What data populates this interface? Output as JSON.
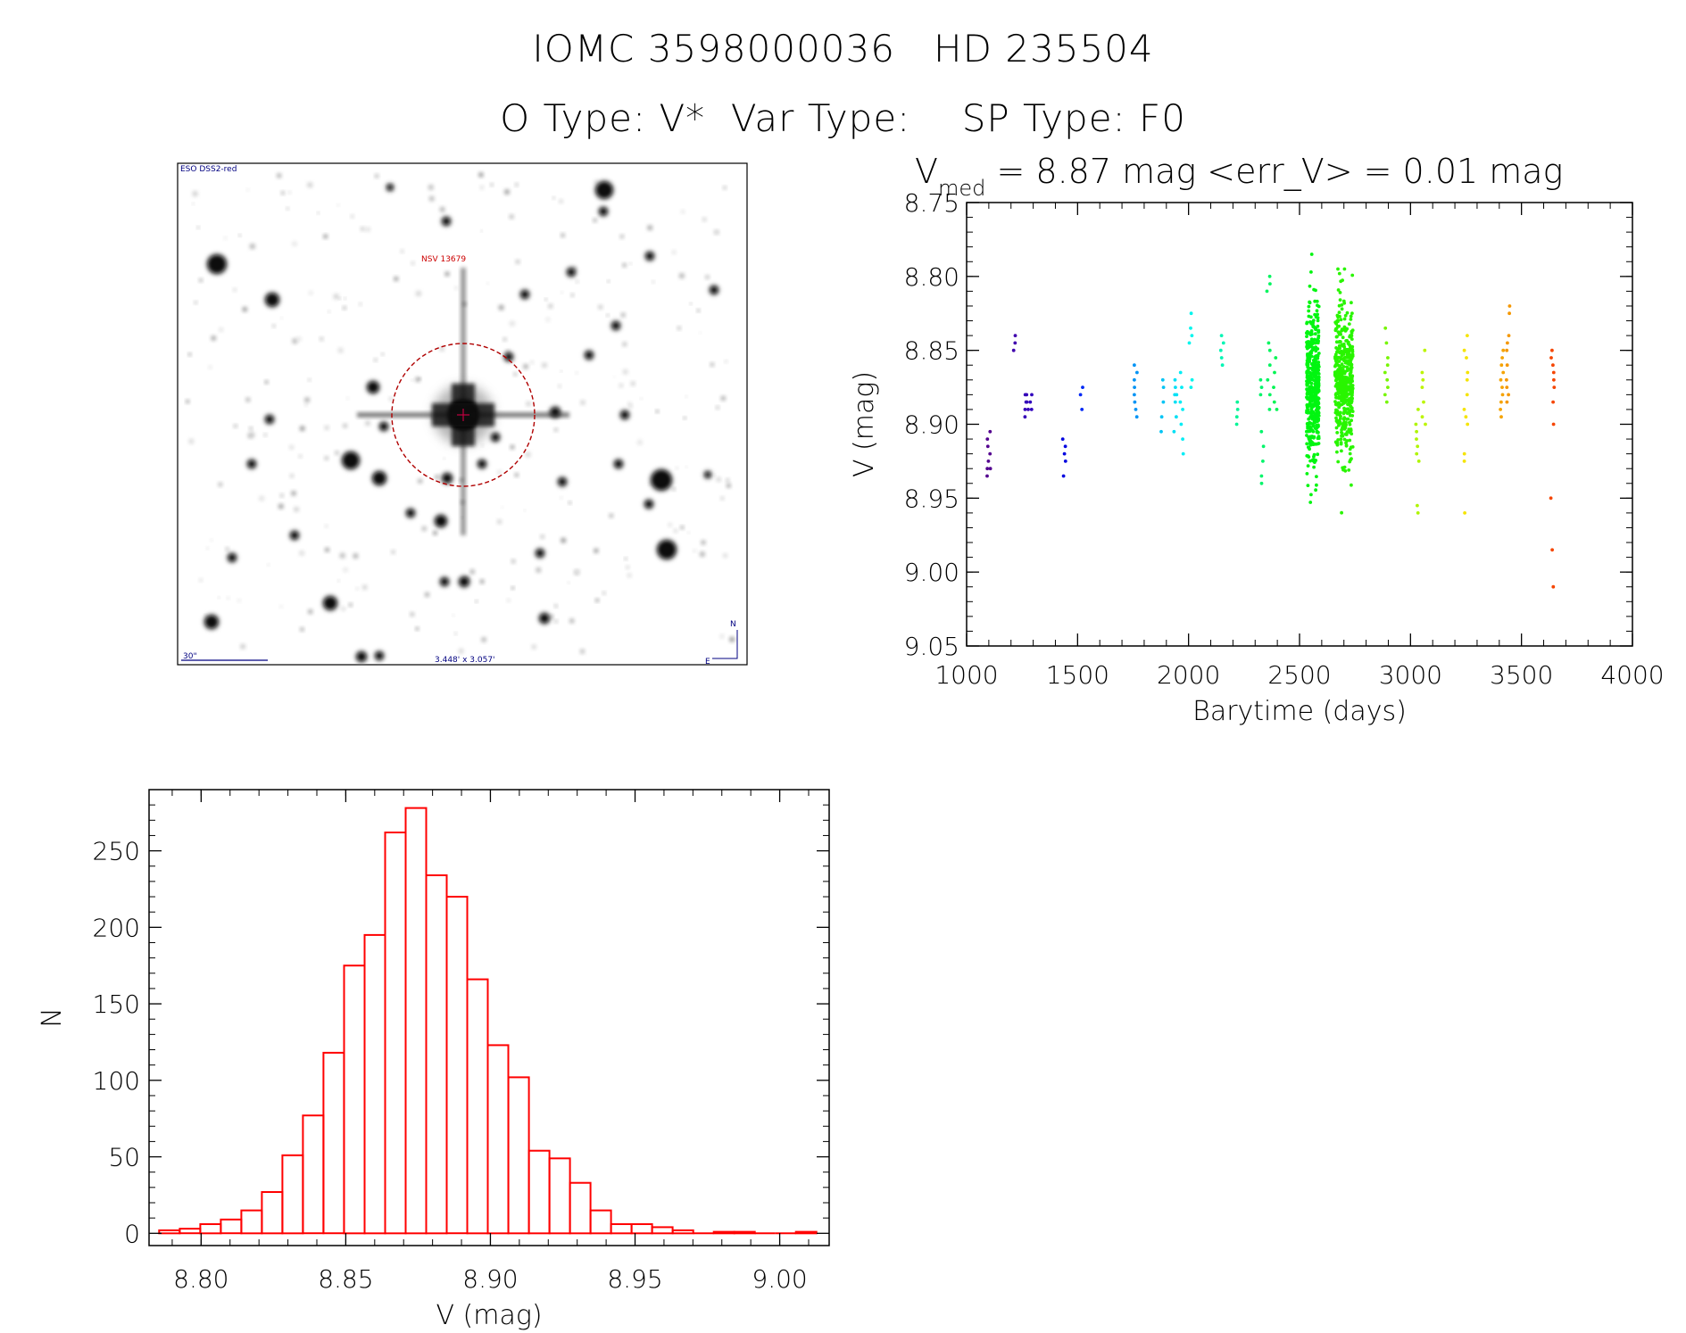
{
  "header": {
    "title_line1": "IOMC 3598000036   HD 235504",
    "title_line2": "O Type: V*  Var Type:    SP Type: F0"
  },
  "finder_image": {
    "survey_label": "ESO DSS2-red",
    "object_label": "NSV 13679",
    "scale_label": "30\"",
    "size_label": "3.448' x 3.057'",
    "north_label": "N",
    "east_label": "E",
    "label_color": "#000080",
    "object_color": "#cc0000"
  },
  "chart_data": [
    {
      "type": "scatter",
      "title_main": "V",
      "title_sub": "med",
      "title_rest": " = 8.87 mag <err_V> = 0.01 mag",
      "xlabel": "Barytime (days)",
      "ylabel": "V (mag)",
      "xlim": [
        1000,
        4000
      ],
      "ylim": [
        9.05,
        8.75
      ],
      "y_inverted": true,
      "xticks": [
        "1000",
        "1500",
        "2000",
        "2500",
        "3000",
        "3500",
        "4000"
      ],
      "yticks": [
        "8.75",
        "8.80",
        "8.85",
        "8.90",
        "8.95",
        "9.00",
        "9.05"
      ],
      "point_color_scale": "rainbow by time (purple to red)",
      "clusters": [
        {
          "t": 1100,
          "y": [
            8.91,
            8.93,
            8.915,
            8.92,
            8.925,
            8.905,
            8.935,
            8.93
          ]
        },
        {
          "t": 1220,
          "y": [
            8.84,
            8.845,
            8.85
          ]
        },
        {
          "t": 1270,
          "y": [
            8.88,
            8.89,
            8.885,
            8.895,
            8.88,
            8.885,
            8.89
          ]
        },
        {
          "t": 1290,
          "y": [
            8.88,
            8.885,
            8.89
          ]
        },
        {
          "t": 1440,
          "y": [
            8.91,
            8.92,
            8.925,
            8.935,
            8.915
          ]
        },
        {
          "t": 1520,
          "y": [
            8.875,
            8.88,
            8.89
          ]
        },
        {
          "t": 1760,
          "y": [
            8.86,
            8.87,
            8.88,
            8.885,
            8.89,
            8.895,
            8.875,
            8.865
          ]
        },
        {
          "t": 1880,
          "y": [
            8.875,
            8.885,
            8.895,
            8.905,
            8.87
          ]
        },
        {
          "t": 1940,
          "y": [
            8.87,
            8.875,
            8.88,
            8.885,
            8.895,
            8.88,
            8.905
          ]
        },
        {
          "t": 1970,
          "y": [
            8.865,
            8.875,
            8.89,
            8.9,
            8.91,
            8.92,
            8.885
          ]
        },
        {
          "t": 2010,
          "y": [
            8.825,
            8.835,
            8.84,
            8.87,
            8.875,
            8.845
          ]
        },
        {
          "t": 2150,
          "y": [
            8.84,
            8.85,
            8.855,
            8.86,
            8.845
          ]
        },
        {
          "t": 2220,
          "y": [
            8.89,
            8.895,
            8.9,
            8.885
          ]
        },
        {
          "t": 2330,
          "y": [
            8.905,
            8.915,
            8.925,
            8.935,
            8.94,
            8.88,
            8.875,
            8.87
          ]
        },
        {
          "t": 2360,
          "y": [
            8.8,
            8.805,
            8.81,
            8.845,
            8.85,
            8.86,
            8.87,
            8.88,
            8.89
          ]
        },
        {
          "t": 2390,
          "y": [
            8.855,
            8.865,
            8.875,
            8.885,
            8.89
          ]
        },
        {
          "t": 2560,
          "dense": true,
          "n": 450,
          "mean": 8.875,
          "sd": 0.026,
          "min": 8.785,
          "max": 8.975,
          "spread": 14
        },
        {
          "t": 2700,
          "dense": true,
          "n": 470,
          "mean": 8.872,
          "sd": 0.025,
          "min": 8.795,
          "max": 8.99,
          "spread": 20
        },
        {
          "t": 2890,
          "y": [
            8.835,
            8.845,
            8.855,
            8.86,
            8.87,
            8.875,
            8.88,
            8.885,
            8.865
          ]
        },
        {
          "t": 3030,
          "y": [
            8.9,
            8.91,
            8.915,
            8.92,
            8.925,
            8.955,
            8.96,
            8.89,
            8.905
          ]
        },
        {
          "t": 3060,
          "y": [
            8.85,
            8.865,
            8.875,
            8.885,
            8.895,
            8.9,
            8.87
          ]
        },
        {
          "t": 3250,
          "y": [
            8.84,
            8.85,
            8.855,
            8.865,
            8.87,
            8.88,
            8.89,
            8.895,
            8.9,
            8.92,
            8.925,
            8.96
          ]
        },
        {
          "t": 3410,
          "y": [
            8.865,
            8.87,
            8.875,
            8.88,
            8.885,
            8.89,
            8.895,
            8.86,
            8.85,
            8.855
          ]
        },
        {
          "t": 3440,
          "y": [
            8.82,
            8.825,
            8.84,
            8.845,
            8.85,
            8.86,
            8.87,
            8.875,
            8.88,
            8.885
          ]
        },
        {
          "t": 3640,
          "y": [
            8.85,
            8.855,
            8.86,
            8.865,
            8.87,
            8.875,
            8.885,
            8.9,
            8.95,
            8.985,
            9.01
          ]
        }
      ]
    },
    {
      "type": "bar",
      "subtype": "histogram",
      "xlabel": "V (mag)",
      "ylabel": "N",
      "xlim": [
        8.782,
        9.0171
      ],
      "ylim": [
        -8,
        290
      ],
      "xticks": [
        "8.80",
        "8.85",
        "8.90",
        "8.95",
        "9.00"
      ],
      "yticks": [
        "0",
        "50",
        "100",
        "150",
        "200",
        "250"
      ],
      "bin_start": 8.7855,
      "bin_width": 0.0071,
      "bar_color": "#ff0000",
      "values": [
        2,
        3,
        6,
        9,
        15,
        27,
        51,
        77,
        118,
        175,
        195,
        262,
        278,
        234,
        220,
        166,
        123,
        102,
        54,
        49,
        33,
        15,
        6,
        6,
        4,
        2,
        0,
        1,
        1,
        0,
        0,
        1
      ]
    }
  ]
}
